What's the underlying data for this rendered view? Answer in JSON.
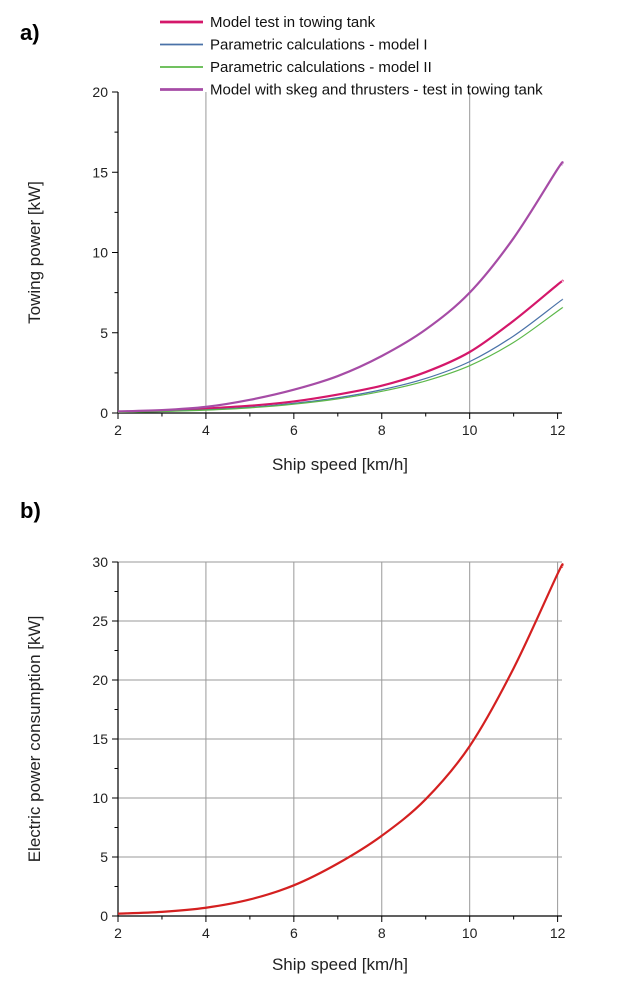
{
  "chart_data": [
    {
      "type": "line",
      "panel_label": "a)",
      "xlabel": "Ship speed [km/h]",
      "ylabel": "Towing power [kW]",
      "xlim": [
        2,
        12.1
      ],
      "ylim": [
        0,
        20
      ],
      "x_ticks": [
        2,
        4,
        6,
        8,
        10,
        12
      ],
      "y_ticks": [
        0,
        5,
        10,
        15,
        20
      ],
      "grid": "vertical at x=4 and x=10",
      "legend_position": "top",
      "x": [
        2,
        3,
        4,
        5,
        6,
        7,
        8,
        9,
        10,
        11,
        12,
        12.1
      ],
      "series": [
        {
          "name": "Model test in towing tank",
          "color": "#d4176a",
          "width": 2.2,
          "values": [
            0.08,
            0.14,
            0.28,
            0.45,
            0.72,
            1.15,
            1.7,
            2.55,
            3.8,
            5.75,
            8.0,
            8.2
          ]
        },
        {
          "name": "Parametric calculations - model I",
          "color": "#4a72a8",
          "width": 1.2,
          "values": [
            0.05,
            0.1,
            0.2,
            0.35,
            0.6,
            0.95,
            1.45,
            2.15,
            3.2,
            4.8,
            6.85,
            7.05
          ]
        },
        {
          "name": "Parametric calculations - model II",
          "color": "#5db84a",
          "width": 1.2,
          "values": [
            0.04,
            0.09,
            0.18,
            0.32,
            0.55,
            0.88,
            1.35,
            2.0,
            2.95,
            4.4,
            6.35,
            6.55
          ]
        },
        {
          "name": "Model with skeg and thrusters - test in towing tank",
          "color": "#a64ca6",
          "width": 2.2,
          "values": [
            0.1,
            0.18,
            0.38,
            0.82,
            1.45,
            2.3,
            3.55,
            5.2,
            7.5,
            10.9,
            15.2,
            15.5
          ]
        }
      ]
    },
    {
      "type": "line",
      "panel_label": "b)",
      "xlabel": "Ship speed [km/h]",
      "ylabel": "Electric power consumption [kW]",
      "xlim": [
        2,
        12.1
      ],
      "ylim": [
        0,
        30
      ],
      "x_ticks": [
        2,
        4,
        6,
        8,
        10,
        12
      ],
      "y_ticks": [
        0,
        5,
        10,
        15,
        20,
        25,
        30
      ],
      "grid": "full",
      "x": [
        2,
        3,
        4,
        5,
        6,
        7,
        8,
        9,
        10,
        11,
        12,
        12.1
      ],
      "series": [
        {
          "color": "#d42020",
          "width": 2.2,
          "values": [
            0.2,
            0.35,
            0.7,
            1.4,
            2.6,
            4.45,
            6.8,
            9.9,
            14.4,
            21.0,
            29.0,
            29.6
          ]
        }
      ]
    }
  ]
}
